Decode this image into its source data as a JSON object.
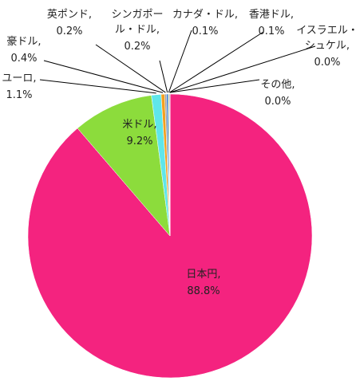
{
  "chart_data": {
    "type": "pie",
    "categories": [
      "日本円,",
      "米ドル,",
      "ユーロ,",
      "豪ドル,",
      "英ポンド,",
      "シンガポール・ドル,",
      "カナダ・ドル,",
      "香港ドル,",
      "イスラエル・シュケル,",
      "その他,"
    ],
    "values": [
      88.8,
      9.2,
      1.1,
      0.4,
      0.2,
      0.2,
      0.1,
      0.1,
      0.0,
      0.0
    ],
    "value_labels": [
      "88.8%",
      "9.2%",
      "1.1%",
      "0.4%",
      "0.2%",
      "0.2%",
      "0.1%",
      "0.1%",
      "0.0%",
      "0.0%"
    ],
    "colors": [
      "#f4237f",
      "#8cdc3c",
      "#5fe6ea",
      "#f5a01e",
      "#a0a0a0",
      "#3a7bd5",
      "#c8e65a",
      "#9b59b6",
      "#f0d020",
      "#d0d0d0"
    ]
  }
}
